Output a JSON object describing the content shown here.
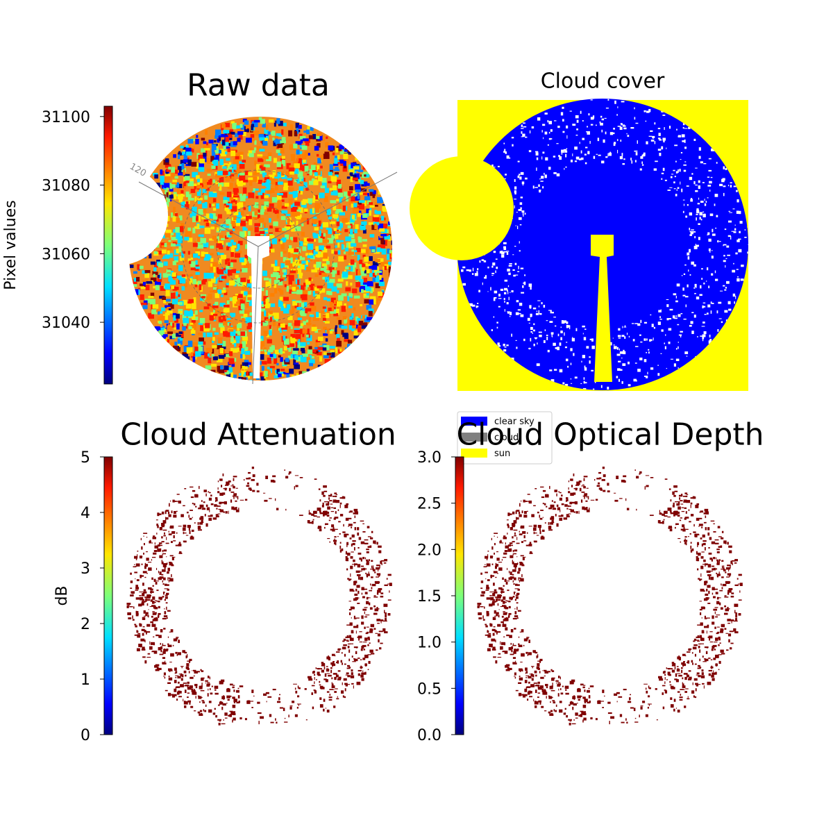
{
  "chart_data": [
    {
      "type": "image",
      "title": "Raw data",
      "annotations": [
        "120"
      ],
      "colorbar": {
        "label": "Pixel values",
        "colormap": "jet",
        "ylim": [
          31022,
          31103
        ],
        "yticks": [
          31040,
          31060,
          31080,
          31100
        ]
      }
    },
    {
      "type": "image",
      "title": "Cloud cover",
      "series": [
        {
          "name": "clear sky",
          "color": "#0000ff"
        },
        {
          "name": "cloud",
          "color": "#808080"
        },
        {
          "name": "sun",
          "color": "#ffff00"
        }
      ]
    },
    {
      "type": "image",
      "title": "Cloud Attenuation",
      "colorbar": {
        "label": "dB",
        "colormap": "jet",
        "ylim": [
          0,
          5
        ],
        "yticks": [
          0,
          1,
          2,
          3,
          4,
          5
        ]
      }
    },
    {
      "type": "image",
      "title": "Cloud Optical Depth",
      "colorbar": {
        "colormap": "jet",
        "ylim": [
          0,
          3
        ],
        "yticks": [
          {
            "value": 0,
            "label": "0.0"
          },
          0.5,
          {
            "value": 1,
            "label": "1.0"
          },
          1.5,
          {
            "value": 2,
            "label": "2.0"
          },
          2.5,
          {
            "value": 3,
            "label": "3.0"
          }
        ]
      }
    }
  ]
}
